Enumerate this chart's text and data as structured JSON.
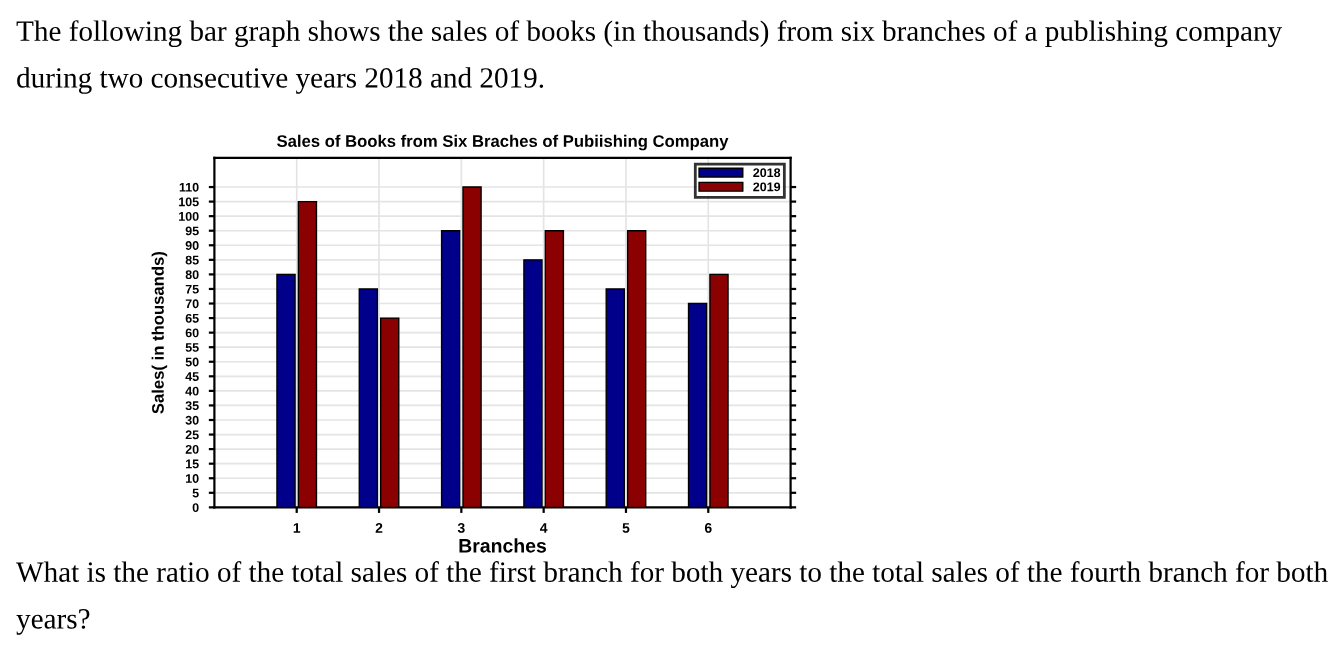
{
  "chart_data": {
    "type": "bar",
    "title": "Sales of Books from Six Braches of Pubiishing Company",
    "xlabel": "Branches",
    "ylabel": "Sales( in thousands)",
    "categories": [
      "1",
      "2",
      "3",
      "4",
      "5",
      "6"
    ],
    "series": [
      {
        "name": "2018",
        "color": "#00008b",
        "values": [
          80,
          75,
          95,
          85,
          75,
          70
        ]
      },
      {
        "name": "2019",
        "color": "#8b0000",
        "values": [
          105,
          65,
          110,
          95,
          95,
          80
        ]
      }
    ],
    "ylim": [
      0,
      120
    ],
    "yticks": [
      0,
      5,
      10,
      15,
      20,
      25,
      30,
      35,
      40,
      45,
      50,
      55,
      60,
      65,
      70,
      75,
      80,
      85,
      90,
      95,
      100,
      105,
      110
    ],
    "grid": true,
    "legend": "top right",
    "annotations": [
      "The following bar graph shows the sales of books (in thousands) from six branches of a publishing company during two consecutive years 2018 and 2019.",
      "What is the ratio of the total sales of the first branch for both years to the total sales of the fourth branch for both years?"
    ]
  }
}
